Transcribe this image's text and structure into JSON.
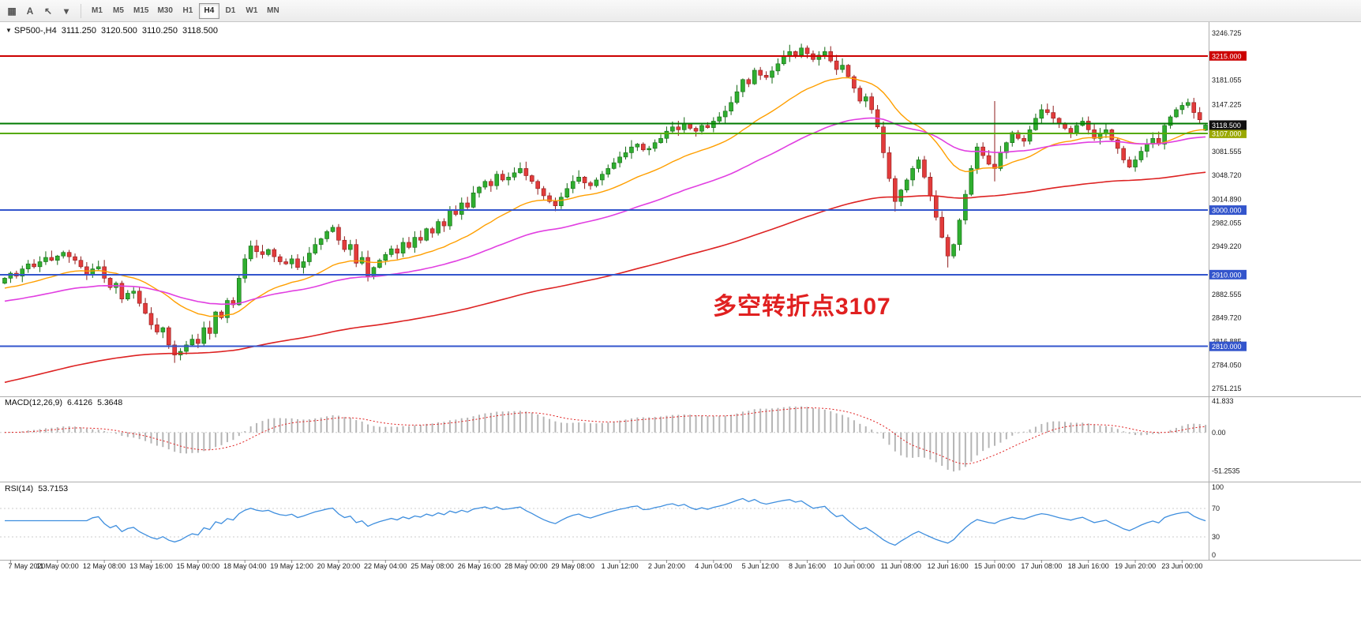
{
  "toolbar": {
    "icons": [
      {
        "name": "chart-grid-icon",
        "glyph": "▦"
      },
      {
        "name": "text-tool-icon",
        "glyph": "A"
      },
      {
        "name": "draw-tools-icon",
        "glyph": "↖"
      },
      {
        "name": "draw-tools-dropdown-icon",
        "glyph": "▾"
      }
    ],
    "timeframes": [
      "M1",
      "M5",
      "M15",
      "M30",
      "H1",
      "H4",
      "D1",
      "W1",
      "MN"
    ],
    "active_timeframe": "H4"
  },
  "chart": {
    "ohlc": {
      "expand_icon": "▼",
      "symbol_period": "SP500-,H4",
      "open": "3111.250",
      "high": "3120.500",
      "low": "3110.250",
      "close": "3118.500"
    },
    "annotation": {
      "text": "多空转折点3107",
      "color": "#e02020"
    }
  },
  "indicators": {
    "macd": {
      "name": "MACD(12,26,9)",
      "value_main": "6.4126",
      "value_signal": "5.3648"
    },
    "rsi": {
      "name": "RSI(14)",
      "value": "53.7153"
    }
  },
  "chart_data": {
    "type": "candlestick",
    "symbol": "SP500-",
    "timeframe": "H4",
    "title": "SP500-,H4 3111.250 3120.500 3110.250 3118.500",
    "ylim": [
      2742.5,
      3255.5
    ],
    "bars_per_label": 8,
    "x_labels": [
      "7 May 2020",
      "11 May 00:00",
      "12 May 08:00",
      "13 May 16:00",
      "15 May 00:00",
      "18 May 04:00",
      "19 May 12:00",
      "20 May 20:00",
      "22 May 04:00",
      "25 May 08:00",
      "26 May 16:00",
      "28 May 00:00",
      "29 May 08:00",
      "1 Jun 12:00",
      "2 Jun 20:00",
      "4 Jun 04:00",
      "5 Jun 12:00",
      "8 Jun 16:00",
      "10 Jun 00:00",
      "11 Jun 08:00",
      "12 Jun 16:00",
      "15 Jun 00:00",
      "17 Jun 08:00",
      "18 Jun 16:00",
      "19 Jun 20:00",
      "23 Jun 00:00"
    ],
    "closes": [
      2905,
      2912,
      2908,
      2918,
      2925,
      2921,
      2928,
      2934,
      2930,
      2936,
      2941,
      2935,
      2930,
      2921,
      2910,
      2918,
      2921,
      2905,
      2892,
      2898,
      2876,
      2884,
      2887,
      2870,
      2856,
      2840,
      2830,
      2836,
      2812,
      2798,
      2803,
      2812,
      2820,
      2814,
      2836,
      2828,
      2858,
      2850,
      2874,
      2868,
      2905,
      2932,
      2950,
      2942,
      2938,
      2945,
      2935,
      2928,
      2925,
      2932,
      2920,
      2928,
      2940,
      2952,
      2960,
      2970,
      2976,
      2958,
      2945,
      2952,
      2926,
      2934,
      2908,
      2920,
      2930,
      2938,
      2946,
      2940,
      2955,
      2948,
      2962,
      2958,
      2974,
      2968,
      2984,
      2978,
      3000,
      2994,
      3010,
      3004,
      3024,
      3032,
      3040,
      3034,
      3050,
      3042,
      3046,
      3052,
      3058,
      3048,
      3040,
      3030,
      3020,
      3012,
      3006,
      3018,
      3030,
      3040,
      3046,
      3038,
      3034,
      3042,
      3050,
      3058,
      3066,
      3074,
      3080,
      3088,
      3092,
      3084,
      3086,
      3094,
      3100,
      3110,
      3116,
      3112,
      3120,
      3114,
      3110,
      3118,
      3115,
      3124,
      3130,
      3138,
      3150,
      3165,
      3182,
      3176,
      3195,
      3188,
      3185,
      3194,
      3204,
      3214,
      3221,
      3216,
      3226,
      3218,
      3210,
      3216,
      3221,
      3208,
      3196,
      3202,
      3186,
      3170,
      3152,
      3158,
      3140,
      3116,
      3080,
      3044,
      3012,
      3028,
      3042,
      3058,
      3070,
      3046,
      3020,
      2990,
      2962,
      2936,
      2952,
      2986,
      3022,
      3058,
      3088,
      3076,
      3064,
      3058,
      3080,
      3094,
      3108,
      3100,
      3096,
      3112,
      3128,
      3140,
      3136,
      3128,
      3120,
      3114,
      3108,
      3118,
      3124,
      3112,
      3100,
      3106,
      3112,
      3098,
      3086,
      3070,
      3060,
      3070,
      3082,
      3092,
      3100,
      3092,
      3118,
      3130,
      3140,
      3146,
      3150,
      3136,
      3126,
      3118.5
    ],
    "special_bars": {
      "29": [
        2812,
        2818,
        2787,
        2798
      ],
      "136": [
        3216,
        3232,
        3212,
        3226
      ],
      "152": [
        3044,
        3048,
        2998,
        3012
      ],
      "161": [
        2962,
        2966,
        2920,
        2936
      ],
      "164": [
        2986,
        3028,
        2980,
        3022
      ],
      "169": [
        3064,
        3152,
        3040,
        3058
      ],
      "205": [
        3111.25,
        3120.5,
        3110.25,
        3118.5
      ]
    },
    "last_ohlc": {
      "open": 3111.25,
      "high": 3120.5,
      "low": 3110.25,
      "close": 3118.5
    },
    "price_ticks": [
      3246.725,
      3181.055,
      3147.225,
      3081.555,
      3048.72,
      3014.89,
      2982.055,
      2949.22,
      2882.555,
      2849.72,
      2816.885,
      2784.05,
      2751.215
    ],
    "current_price_badge": {
      "price": 3118.5,
      "label": "3118.500",
      "color": "#111111"
    },
    "h_lines": [
      {
        "price": 3215,
        "color": "#cc0000",
        "width": 2,
        "badge_label": "3215.000",
        "badge_color": "#cc0000"
      },
      {
        "price": 3120.5,
        "color": "#007a00",
        "width": 2
      },
      {
        "price": 3107,
        "color": "#55aa00",
        "width": 2,
        "badge_label": "3107.000",
        "badge_color": "#9aa800"
      },
      {
        "price": 3000,
        "color": "#3355cc",
        "width": 2,
        "badge_label": "3000.000",
        "badge_color": "#3355cc"
      },
      {
        "price": 2910,
        "color": "#3355cc",
        "width": 2,
        "badge_label": "2910.000",
        "badge_color": "#3355cc"
      },
      {
        "price": 2810,
        "color": "#3355cc",
        "width": 2,
        "badge_label": "2810.000",
        "badge_color": "#3355cc"
      }
    ],
    "moving_averages": [
      {
        "name": "ma-fast",
        "period": 24,
        "seed": 2890,
        "color": "#ff9f00",
        "width": 1.4
      },
      {
        "name": "ma-medium",
        "period": 60,
        "seed": 2872,
        "color": "#e13fe1",
        "width": 1.6
      },
      {
        "name": "ma-slow",
        "period": 160,
        "seed": 2758,
        "color": "#dd2222",
        "width": 1.6
      }
    ],
    "macd": {
      "fast": 12,
      "slow": 26,
      "signal": 9,
      "current_main": 6.4126,
      "current_signal": 5.3648,
      "range": [
        45,
        -55
      ],
      "axis_ticks": [
        {
          "v": 41.833,
          "label": "41.833"
        },
        {
          "v": 0,
          "label": "0.00"
        },
        {
          "v": -51.2535,
          "label": "-51.2535"
        }
      ]
    },
    "rsi": {
      "period": 14,
      "current": 53.7153,
      "levels": [
        70,
        30
      ],
      "axis_ticks": [
        {
          "v": 100,
          "label": "100"
        },
        {
          "v": 70,
          "label": "70"
        },
        {
          "v": 30,
          "label": "30"
        },
        {
          "v": 0,
          "label": "0"
        }
      ]
    },
    "colors": {
      "up": "#2fae2f",
      "up_border": "#146914",
      "down": "#e23b3b",
      "down_border": "#8f1d1d",
      "macd_hist": "#b5b5b5",
      "macd_signal": "#e02020",
      "rsi_line": "#3e8ede",
      "axis_text": "#1a1a1a",
      "separator": "#adadad"
    }
  }
}
